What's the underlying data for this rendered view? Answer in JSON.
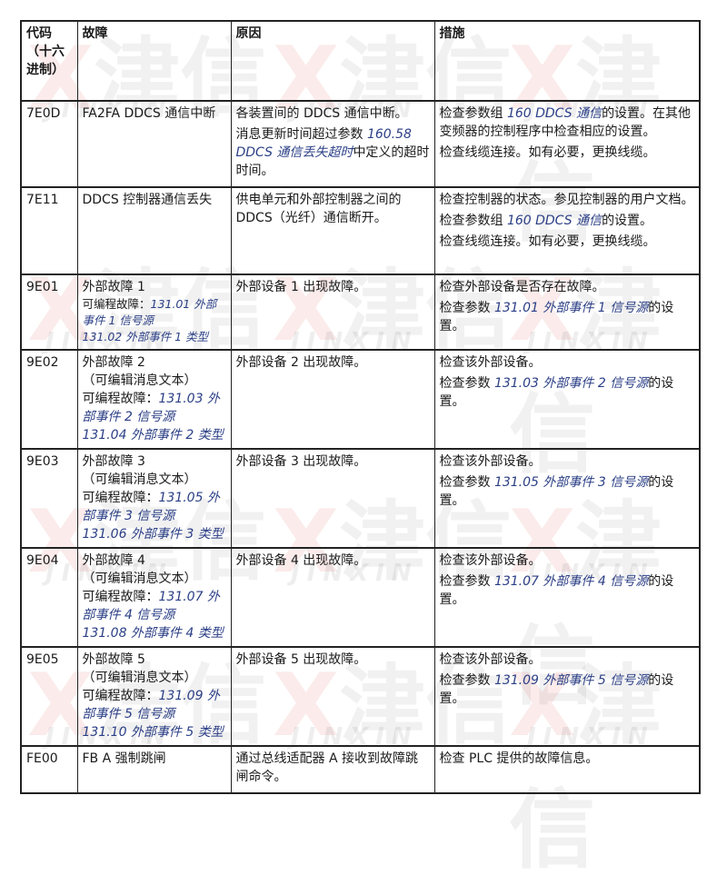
{
  "watermark": {
    "mark": "X",
    "chinese": "津信",
    "latin": "JINXIN"
  },
  "colors": {
    "link": "#2b3f86",
    "border": "#222222",
    "watermark_red": "#dc3c3c"
  },
  "table": {
    "headers": [
      "代码（十六进制）",
      "故障",
      "原因",
      "措施"
    ],
    "rows": [
      {
        "code": "7E0D",
        "fault": [
          [
            {
              "t": "FA2FA DDCS 通信中断"
            }
          ]
        ],
        "cause": [
          [
            {
              "t": "各装置间的 DDCS 通信中断。"
            }
          ],
          [
            {
              "t": "消息更新时间超过参数 "
            },
            {
              "t": "160.58 DDCS 通信丢失超时",
              "link": true
            },
            {
              "t": "中定义的超时时间。"
            }
          ]
        ],
        "action": [
          [
            {
              "t": "检查参数组 "
            },
            {
              "t": "160 DDCS 通信",
              "link": true
            },
            {
              "t": "的设置。在其他变频器的控制程序中检查相应的设置。"
            }
          ],
          [
            {
              "t": "检查线缆连接。如有必要，更换线缆。"
            }
          ]
        ]
      },
      {
        "code": "7E11",
        "fault": [
          [
            {
              "t": "DDCS 控制器通信丢失"
            }
          ]
        ],
        "cause": [
          [
            {
              "t": "供电单元和外部控制器之间的 DDCS（光纤）通信断开。"
            }
          ]
        ],
        "action": [
          [
            {
              "t": "检查控制器的状态。参见控制器的用户文档。"
            }
          ],
          [
            {
              "t": "检查参数组 "
            },
            {
              "t": "160 DDCS 通信",
              "link": true
            },
            {
              "t": "的设置。"
            }
          ],
          [
            {
              "t": "检查线缆连接。如有必要，更换线缆。"
            }
          ]
        ]
      },
      {
        "code": "9E01",
        "fault": [
          [
            {
              "t": "外部故障 1"
            }
          ],
          [
            {
              "t": "可编程故障："
            },
            {
              "t": "131.01 外部事件 1 信号源",
              "link": true
            }
          ],
          [
            {
              "t": "131.02 外部事件 1 类型",
              "link": true
            }
          ]
        ],
        "fault_small": true,
        "cause": [
          [
            {
              "t": "外部设备 1 出现故障。"
            }
          ]
        ],
        "action": [
          [
            {
              "t": "检查外部设备是否存在故障。"
            }
          ],
          [
            {
              "t": "检查参数 "
            },
            {
              "t": "131.01 外部事件 1 信号源",
              "link": true
            },
            {
              "t": "的设置。"
            }
          ]
        ]
      },
      {
        "code": "9E02",
        "fault": [
          [
            {
              "t": "外部故障 2"
            }
          ],
          [
            {
              "t": "（可编辑消息文本）"
            }
          ],
          [
            {
              "t": "可编程故障："
            },
            {
              "t": "131.03 外部事件 2 信号源",
              "link": true
            }
          ],
          [
            {
              "t": "131.04 外部事件 2 类型",
              "link": true
            }
          ]
        ],
        "cause": [
          [
            {
              "t": "外部设备 2 出现故障。"
            }
          ]
        ],
        "action": [
          [
            {
              "t": "检查该外部设备。"
            }
          ],
          [
            {
              "t": "检查参数 "
            },
            {
              "t": "131.03 外部事件 2 信号源",
              "link": true
            },
            {
              "t": "的设置。"
            }
          ]
        ]
      },
      {
        "code": "9E03",
        "fault": [
          [
            {
              "t": "外部故障 3"
            }
          ],
          [
            {
              "t": "（可编辑消息文本）"
            }
          ],
          [
            {
              "t": "可编程故障："
            },
            {
              "t": "131.05 外部事件 3 信号源",
              "link": true
            }
          ],
          [
            {
              "t": "131.06 外部事件 3 类型",
              "link": true
            }
          ]
        ],
        "cause": [
          [
            {
              "t": "外部设备 3 出现故障。"
            }
          ]
        ],
        "action": [
          [
            {
              "t": "检查该外部设备。"
            }
          ],
          [
            {
              "t": "检查参数 "
            },
            {
              "t": "131.05 外部事件 3 信号源",
              "link": true
            },
            {
              "t": "的设置。"
            }
          ]
        ]
      },
      {
        "code": "9E04",
        "fault": [
          [
            {
              "t": "外部故障 4"
            }
          ],
          [
            {
              "t": "（可编辑消息文本）"
            }
          ],
          [
            {
              "t": "可编程故障："
            },
            {
              "t": "131.07 外部事件 4 信号源",
              "link": true
            }
          ],
          [
            {
              "t": "131.08 外部事件 4 类型",
              "link": true
            }
          ]
        ],
        "cause": [
          [
            {
              "t": "外部设备 4 出现故障。"
            }
          ]
        ],
        "action": [
          [
            {
              "t": "检查该外部设备。"
            }
          ],
          [
            {
              "t": "检查参数 "
            },
            {
              "t": "131.07 外部事件 4 信号源",
              "link": true
            },
            {
              "t": "的设置。"
            }
          ]
        ]
      },
      {
        "code": "9E05",
        "fault": [
          [
            {
              "t": "外部故障 5"
            }
          ],
          [
            {
              "t": "（可编辑消息文本）"
            }
          ],
          [
            {
              "t": "可编程故障："
            },
            {
              "t": "131.09 外部事件 5 信号源",
              "link": true
            }
          ],
          [
            {
              "t": "131.10 外部事件 5 类型",
              "link": true
            }
          ]
        ],
        "cause": [
          [
            {
              "t": "外部设备 5 出现故障。"
            }
          ]
        ],
        "action": [
          [
            {
              "t": "检查该外部设备。"
            }
          ],
          [
            {
              "t": "检查参数 "
            },
            {
              "t": "131.09 外部事件 5 信号源",
              "link": true
            },
            {
              "t": "的设置。"
            }
          ]
        ]
      },
      {
        "code": "FE00",
        "fault": [
          [
            {
              "t": "FB A 强制跳闸"
            }
          ]
        ],
        "cause": [
          [
            {
              "t": "通过总线适配器 A 接收到故障跳闸命令。"
            }
          ]
        ],
        "action": [
          [
            {
              "t": "检查 PLC 提供的故障信息。"
            }
          ]
        ]
      }
    ]
  }
}
